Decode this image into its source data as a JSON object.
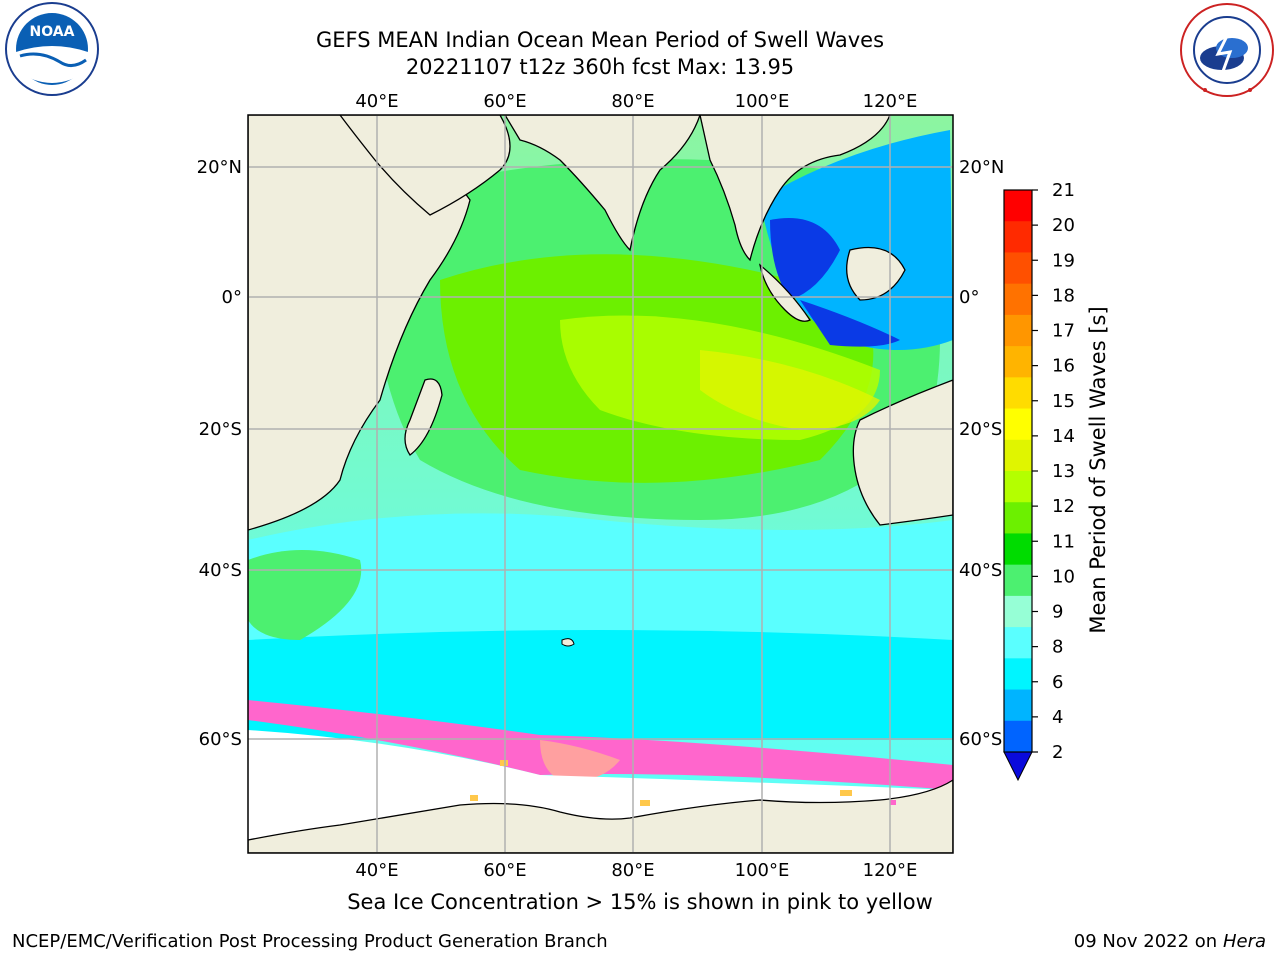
{
  "title_line1": "GEFS MEAN Indian Ocean Mean Period of Swell Waves",
  "title_line2": "20221107 t12z 360h fcst   Max: 13.95",
  "subtitle": "Sea Ice Concentration > 15% is shown in pink to yellow",
  "footer_left": "NCEP/EMC/Verification Post Processing Product Generation Branch",
  "footer_date": "09 Nov 2022 on",
  "footer_host": "Hera",
  "logos": {
    "noaa_text": "NOAA",
    "nws_text": "NATIONAL WEATHER SERVICE"
  },
  "map": {
    "lon_labels": [
      "40°E",
      "60°E",
      "80°E",
      "100°E",
      "120°E"
    ],
    "lon_values": [
      40,
      60,
      80,
      100,
      120
    ],
    "lat_labels": [
      "20°N",
      "0°",
      "20°S",
      "40°S",
      "60°S"
    ],
    "lat_values": [
      20,
      0,
      -20,
      -40,
      -60
    ],
    "lon_range": [
      20,
      130
    ],
    "lat_range": [
      -75,
      28
    ]
  },
  "colorbar": {
    "label": "Mean Period of Swell Waves [s]",
    "ticks": [
      "21",
      "20",
      "19",
      "18",
      "17",
      "16",
      "15",
      "14",
      "13",
      "12",
      "11",
      "10",
      "9",
      "8",
      "6",
      "4",
      "2"
    ],
    "colors": [
      "#ff0000",
      "#ff2a00",
      "#ff5000",
      "#ff7200",
      "#ff9600",
      "#ffb400",
      "#ffdc00",
      "#ffff00",
      "#e0f500",
      "#b4ff00",
      "#6cf000",
      "#00dc00",
      "#4cf070",
      "#96ffd6",
      "#5affff",
      "#00f5ff",
      "#00b4ff",
      "#0064ff"
    ],
    "below_color": "#0a0adc"
  },
  "legend_colors": {
    "land": "#f0eedd",
    "ice_pink": "#ff66cc",
    "ice_yellow": "#ffc84b",
    "grid": "#b0b0b0"
  }
}
